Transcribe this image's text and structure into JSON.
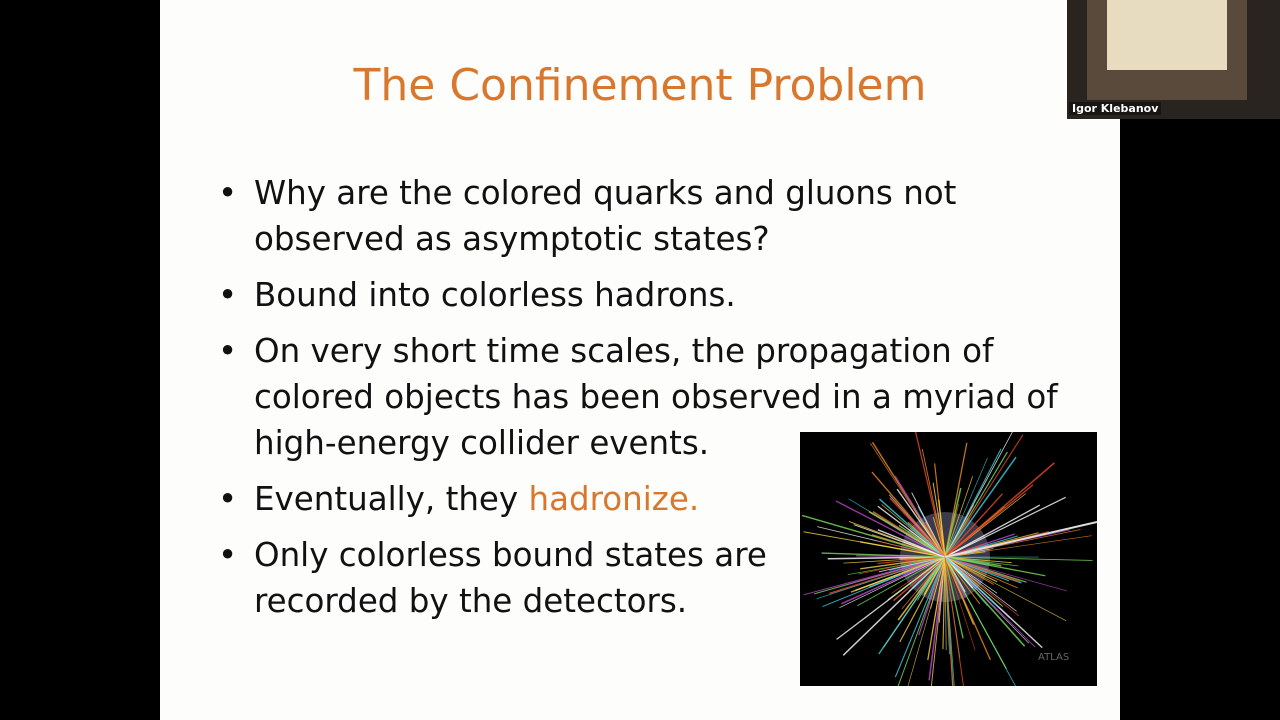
{
  "slide": {
    "title": "The Confinement Problem",
    "bullets": [
      {
        "text": "Why are the colored quarks and gluons not observed as asymptotic states?"
      },
      {
        "text": "Bound into colorless hadrons."
      },
      {
        "text": "On very short time scales, the propagation of colored objects has been observed in a myriad of high-energy collider events."
      },
      {
        "text": "Eventually, they ",
        "highlight": "hadronize."
      },
      {
        "text": "Only colorless bound states are recorded by the detectors."
      }
    ],
    "image_logo": "ATLAS",
    "accent_color": "#d8782e"
  },
  "video": {
    "speaker_name": "Igor Klebanov"
  }
}
